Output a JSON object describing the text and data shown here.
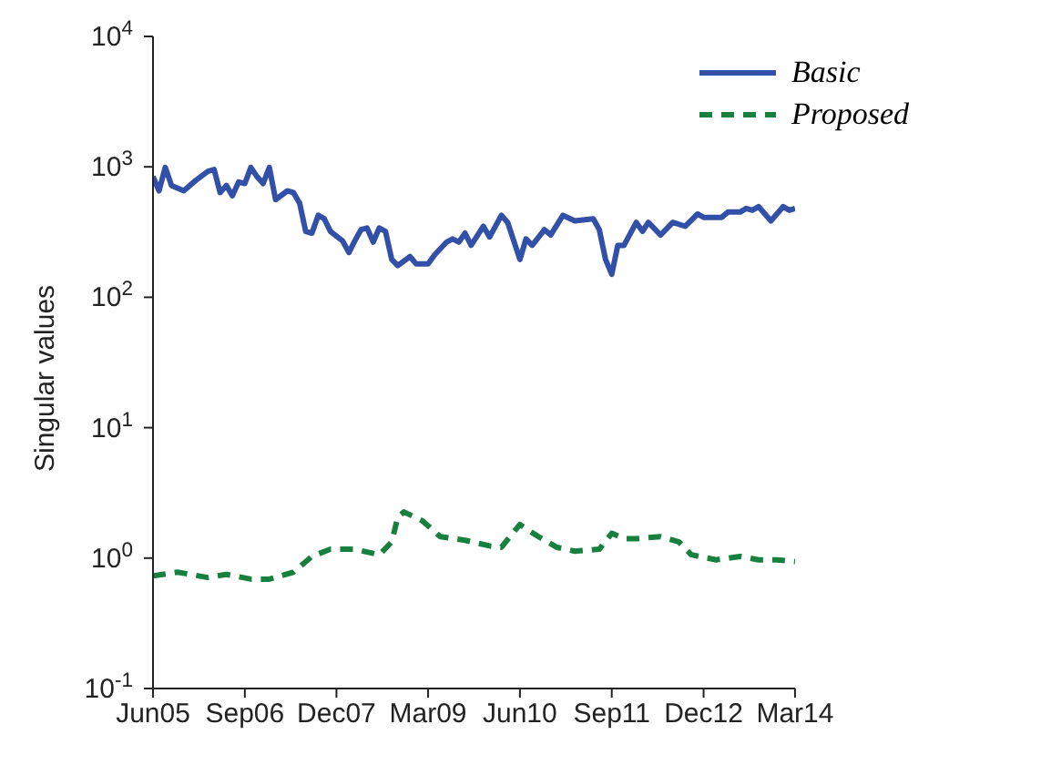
{
  "chart_data": {
    "type": "line",
    "ylabel": "Singular values",
    "log": "y",
    "grid": false,
    "legend": "top right",
    "marker": "none",
    "xlim": [
      "2005-06",
      "2014-03"
    ],
    "xticks": [
      {
        "value": "2005-06",
        "label": "Jun05"
      },
      {
        "value": "2006-09",
        "label": "Sep06"
      },
      {
        "value": "2007-12",
        "label": "Dec07"
      },
      {
        "value": "2009-03",
        "label": "Mar09"
      },
      {
        "value": "2010-06",
        "label": "Jun10"
      },
      {
        "value": "2011-09",
        "label": "Sep11"
      },
      {
        "value": "2012-12",
        "label": "Dec12"
      },
      {
        "value": "2014-03",
        "label": "Mar14"
      }
    ],
    "ylim": [
      0.1,
      10000
    ],
    "yticks": [
      {
        "value": 0.1,
        "label": "10$^{-1}$"
      },
      {
        "value": 1,
        "label": "10$^{0}$"
      },
      {
        "value": 10,
        "label": "10$^{1}$"
      },
      {
        "value": 100,
        "label": "10$^{2}$"
      },
      {
        "value": 1000,
        "label": "10$^{3}$"
      },
      {
        "value": 10000,
        "label": "10$^{4}$"
      }
    ],
    "series": [
      {
        "name": "Basic",
        "color": "#3350a8",
        "line_style": "solid",
        "x": [
          "2005-06",
          "2005-07",
          "2005-08",
          "2005-09",
          "2005-11",
          "2006-01",
          "2006-03",
          "2006-04",
          "2006-05",
          "2006-06",
          "2006-07",
          "2006-08",
          "2006-09",
          "2006-10",
          "2006-11",
          "2006-12",
          "2007-01",
          "2007-02",
          "2007-04",
          "2007-05",
          "2007-06",
          "2007-07",
          "2007-08",
          "2007-09",
          "2007-10",
          "2007-11",
          "2008-01",
          "2008-02",
          "2008-03",
          "2008-04",
          "2008-05",
          "2008-06",
          "2008-07",
          "2008-08",
          "2008-09",
          "2008-10",
          "2008-12",
          "2009-01",
          "2009-03",
          "2009-04",
          "2009-06",
          "2009-07",
          "2009-08",
          "2009-09",
          "2009-10",
          "2009-12",
          "2010-01",
          "2010-03",
          "2010-04",
          "2010-06",
          "2010-07",
          "2010-08",
          "2010-10",
          "2010-11",
          "2011-01",
          "2011-03",
          "2011-06",
          "2011-07",
          "2011-08",
          "2011-09",
          "2011-10",
          "2011-11",
          "2012-01",
          "2012-02",
          "2012-03",
          "2012-05",
          "2012-07",
          "2012-09",
          "2012-11",
          "2012-12",
          "2013-03",
          "2013-04",
          "2013-06",
          "2013-07",
          "2013-08",
          "2013-09",
          "2013-11",
          "2014-01",
          "2014-02",
          "2014-03"
        ],
        "values": [
          840,
          655,
          990,
          720,
          655,
          790,
          925,
          955,
          635,
          720,
          600,
          765,
          745,
          990,
          840,
          745,
          990,
          560,
          655,
          635,
          525,
          320,
          310,
          425,
          400,
          320,
          270,
          220,
          270,
          330,
          340,
          265,
          340,
          320,
          195,
          175,
          205,
          180,
          180,
          210,
          265,
          280,
          265,
          310,
          250,
          350,
          290,
          425,
          375,
          195,
          280,
          250,
          330,
          300,
          425,
          385,
          400,
          330,
          195,
          150,
          250,
          250,
          375,
          320,
          375,
          300,
          375,
          350,
          435,
          410,
          410,
          450,
          450,
          480,
          465,
          495,
          385,
          495,
          465,
          480
        ]
      },
      {
        "name": "Proposed",
        "color": "#17803f",
        "line_style": "dashed",
        "x": [
          "2005-06",
          "2005-10",
          "2006-03",
          "2006-06",
          "2006-10",
          "2007-01",
          "2007-05",
          "2007-08",
          "2007-11",
          "2008-03",
          "2008-07",
          "2008-09",
          "2008-10",
          "2008-11",
          "2009-02",
          "2009-05",
          "2009-09",
          "2010-01",
          "2010-03",
          "2010-06",
          "2010-09",
          "2010-12",
          "2011-03",
          "2011-07",
          "2011-09",
          "2011-11",
          "2012-01",
          "2012-05",
          "2012-08",
          "2012-10",
          "2013-02",
          "2013-06",
          "2013-09",
          "2013-12",
          "2014-03"
        ],
        "values": [
          0.73,
          0.78,
          0.71,
          0.75,
          0.69,
          0.69,
          0.78,
          1.03,
          1.17,
          1.17,
          1.06,
          1.33,
          2.06,
          2.26,
          1.93,
          1.46,
          1.37,
          1.24,
          1.21,
          1.81,
          1.46,
          1.21,
          1.13,
          1.17,
          1.55,
          1.41,
          1.41,
          1.46,
          1.33,
          1.06,
          0.97,
          1.03,
          0.97,
          0.97,
          0.94
        ]
      }
    ]
  }
}
